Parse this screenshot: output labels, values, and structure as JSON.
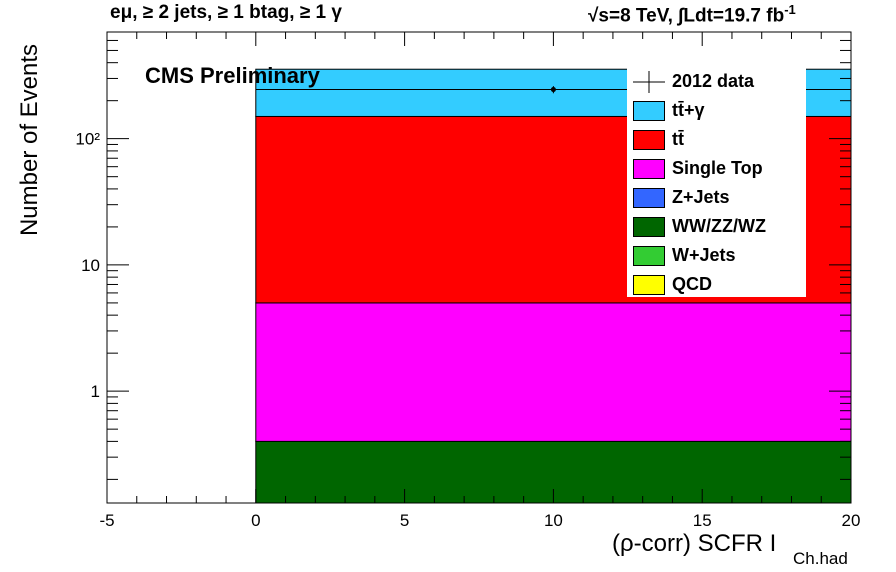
{
  "header": {
    "title_left": "eμ, ≥ 2 jets, ≥ 1 btag, ≥ 1 γ",
    "title_right": "√s=8 TeV, ∫Ldt=19.7 fb",
    "title_right_sup": "-1"
  },
  "labels": {
    "cms": "CMS Preliminary",
    "ylabel": "Number of Events",
    "xlabel": "(ρ-corr) SCFR I",
    "xlabel_sub": "Ch.had"
  },
  "legend": {
    "placement": "top-right",
    "entries": [
      {
        "label": "2012 data",
        "kind": "marker",
        "color": "#000000"
      },
      {
        "label": "tt̄+γ",
        "kind": "fill",
        "color": "#33ccff"
      },
      {
        "label": "tt̄",
        "kind": "fill",
        "color": "#ff0000"
      },
      {
        "label": "Single Top",
        "kind": "fill",
        "color": "#ff00ff"
      },
      {
        "label": "Z+Jets",
        "kind": "fill",
        "color": "#3366ff"
      },
      {
        "label": "WW/ZZ/WZ",
        "kind": "fill",
        "color": "#006600"
      },
      {
        "label": "W+Jets",
        "kind": "fill",
        "color": "#33cc33"
      },
      {
        "label": "QCD",
        "kind": "fill",
        "color": "#ffff00"
      }
    ]
  },
  "chart_data": {
    "type": "bar",
    "stacked": true,
    "xlim": [
      -5,
      20
    ],
    "ylim": [
      0.13,
      700
    ],
    "yscale": "log",
    "grid": false,
    "x_ticks": [
      -5,
      0,
      5,
      10,
      15,
      20
    ],
    "x_tick_labels": [
      "-5",
      "0",
      "5",
      "10",
      "15",
      "20"
    ],
    "y_ticks": [
      1,
      10,
      100
    ],
    "y_tick_labels": [
      "1",
      "10",
      "10²"
    ],
    "bin": [
      0,
      20
    ],
    "stack": [
      {
        "name": "WW/ZZ/WZ",
        "color": "#006600",
        "value": 0.4
      },
      {
        "name": "Single Top",
        "color": "#ff00ff",
        "value": 4.6
      },
      {
        "name": "tt̄",
        "color": "#ff0000",
        "value": 145
      },
      {
        "name": "tt̄+γ",
        "color": "#33ccff",
        "value": 205
      }
    ],
    "data_points": [
      {
        "name": "2012 data",
        "x": 10,
        "y": 245,
        "xerr": 10,
        "yerr": 16
      }
    ]
  }
}
